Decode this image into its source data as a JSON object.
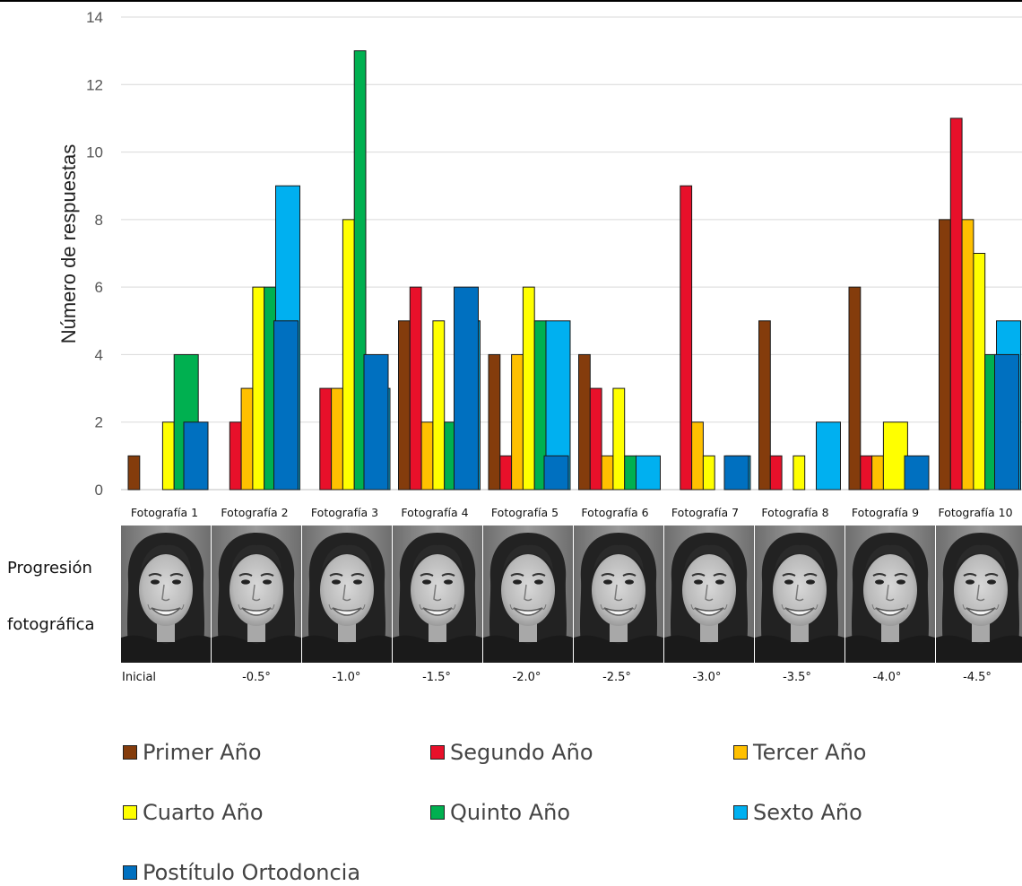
{
  "chart_data": {
    "type": "bar",
    "ylabel": "Número de respuestas",
    "ylim": [
      0,
      14
    ],
    "yticks": [
      0,
      2,
      4,
      6,
      8,
      10,
      12,
      14
    ],
    "grid": true,
    "legend_position": "bottom",
    "categories": [
      "Fotografía 1",
      "Fotografía 2",
      "Fotografía 3",
      "Fotografía 4",
      "Fotografía 5",
      "Fotografía 6",
      "Fotografía 7",
      "Fotografía 8",
      "Fotografía 9",
      "Fotografía 10"
    ],
    "angles": [
      "Inicial",
      "-0.5°",
      "-1.0°",
      "-1.5°",
      "-2.0°",
      "-2.5°",
      "-3.0°",
      "-3.5°",
      "-4.0°",
      "-4.5°"
    ],
    "series": [
      {
        "name": "Primer Año",
        "color": "#843c0c",
        "values": [
          1,
          0,
          0,
          5,
          4,
          4,
          0,
          5,
          6,
          8
        ]
      },
      {
        "name": "Segundo Año",
        "color": "#e8102a",
        "values": [
          0,
          2,
          3,
          6,
          1,
          3,
          9,
          1,
          1,
          11
        ]
      },
      {
        "name": "Tercer Año",
        "color": "#ffc000",
        "values": [
          0,
          3,
          3,
          2,
          4,
          1,
          2,
          0,
          1,
          8
        ]
      },
      {
        "name": "Cuarto Año",
        "color": "#ffff00",
        "values": [
          2,
          6,
          8,
          5,
          6,
          3,
          1,
          1,
          2,
          7
        ]
      },
      {
        "name": "Quinto Año",
        "color": "#00b050",
        "values": [
          4,
          6,
          13,
          2,
          5,
          1,
          0,
          0,
          0,
          4
        ]
      },
      {
        "name": "Sexto Año",
        "color": "#00b0f0",
        "values": [
          0,
          9,
          3,
          5,
          5,
          1,
          1,
          2,
          0,
          5
        ]
      },
      {
        "name": "Postítulo Ortodoncia",
        "color": "#0070c0",
        "values": [
          2,
          5,
          4,
          6,
          1,
          0,
          1,
          0,
          1,
          4
        ]
      }
    ]
  },
  "side_label": {
    "line1": "Progresión",
    "line2": "fotográfica"
  }
}
